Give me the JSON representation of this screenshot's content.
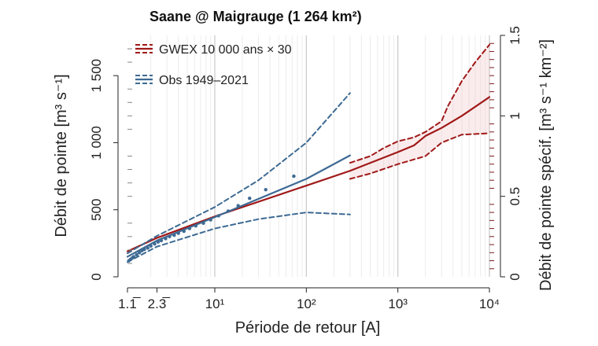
{
  "chart_data": {
    "type": "line",
    "title": "Saane @ Maigrauge (1 264 km²)",
    "xlabel": "Période de retour [A]",
    "ylabel": "Débit de pointe [m³ s⁻¹]",
    "ylabel_right": "Débit de pointe spécif. [m³ s⁻¹ km⁻²]",
    "x_scale": "log",
    "xlim": [
      1.1111,
      10000
    ],
    "ylim": [
      0,
      1800
    ],
    "ylim_right": [
      0,
      1.5
    ],
    "x_ticks": [
      {
        "value": 1.1111,
        "label": "1.1̅"
      },
      {
        "value": 2.3333,
        "label": "2.3̅"
      },
      {
        "value": 10,
        "label": "10¹"
      },
      {
        "value": 100,
        "label": "10²"
      },
      {
        "value": 1000,
        "label": "10³"
      },
      {
        "value": 10000,
        "label": "10⁴"
      }
    ],
    "y_ticks": [
      {
        "value": 0,
        "label": "0"
      },
      {
        "value": 500,
        "label": "500"
      },
      {
        "value": 1000,
        "label": "1 000"
      },
      {
        "value": 1500,
        "label": "1 500"
      }
    ],
    "y_ticks_right": [
      {
        "value": 0,
        "label": "0"
      },
      {
        "value": 0.5,
        "label": "0.5"
      },
      {
        "value": 1,
        "label": "1"
      },
      {
        "value": 1.5,
        "label": "1.5"
      }
    ],
    "legend": {
      "placement": "top-left",
      "entries": [
        {
          "label": "GWEX 10 000  ans  × 30",
          "color": "#a01818"
        },
        {
          "label": "Obs 1949–2021",
          "color": "#3d6a93"
        }
      ]
    },
    "colors": {
      "gwex": "#a01818",
      "obs": "#3d6a93",
      "gwex_band": "#f2c9c9"
    },
    "series": [
      {
        "key": "gwex_median",
        "style": "solid",
        "x": [
          1.1111,
          2.3333,
          10,
          100,
          300,
          1000,
          1500,
          2000,
          3000,
          5000,
          10000
        ],
        "y": [
          190,
          290,
          450,
          680,
          790,
          930,
          980,
          1050,
          1110,
          1200,
          1340
        ]
      },
      {
        "key": "gwex_upper",
        "style": "dashed",
        "x": [
          300,
          500,
          700,
          1000,
          1500,
          2000,
          3000,
          3500,
          5000,
          7000,
          10000
        ],
        "y": [
          850,
          900,
          960,
          1010,
          1040,
          1080,
          1160,
          1270,
          1460,
          1600,
          1730
        ]
      },
      {
        "key": "gwex_lower",
        "style": "dashed",
        "x": [
          300,
          500,
          1000,
          2000,
          3000,
          5000,
          10000
        ],
        "y": [
          730,
          770,
          840,
          900,
          1000,
          1060,
          1070
        ]
      },
      {
        "key": "obs_fit",
        "style": "solid",
        "x": [
          1.1111,
          2.3333,
          10,
          100,
          300
        ],
        "y": [
          150,
          270,
          445,
          730,
          905
        ]
      },
      {
        "key": "obs_upper",
        "style": "dashed",
        "x": [
          1.1111,
          2.3333,
          10,
          30,
          100,
          300
        ],
        "y": [
          175,
          305,
          520,
          720,
          1000,
          1370
        ]
      },
      {
        "key": "obs_lower",
        "style": "dashed",
        "x": [
          1.1111,
          2.3333,
          10,
          30,
          100,
          300
        ],
        "y": [
          110,
          225,
          360,
          430,
          480,
          465
        ]
      }
    ],
    "obs_points": {
      "x": [
        1.15,
        1.2,
        1.25,
        1.3,
        1.4,
        1.5,
        1.6,
        1.7,
        1.85,
        2.0,
        2.2,
        2.4,
        2.6,
        2.9,
        3.2,
        3.6,
        4.0,
        4.6,
        5.3,
        6.2,
        7.5,
        9,
        11,
        14,
        18,
        24,
        36,
        73
      ],
      "y": [
        120,
        130,
        140,
        150,
        165,
        180,
        195,
        205,
        215,
        230,
        245,
        260,
        270,
        285,
        300,
        310,
        325,
        340,
        360,
        380,
        400,
        425,
        455,
        490,
        530,
        585,
        650,
        750
      ]
    },
    "grid": {
      "x": true,
      "y": false
    }
  }
}
